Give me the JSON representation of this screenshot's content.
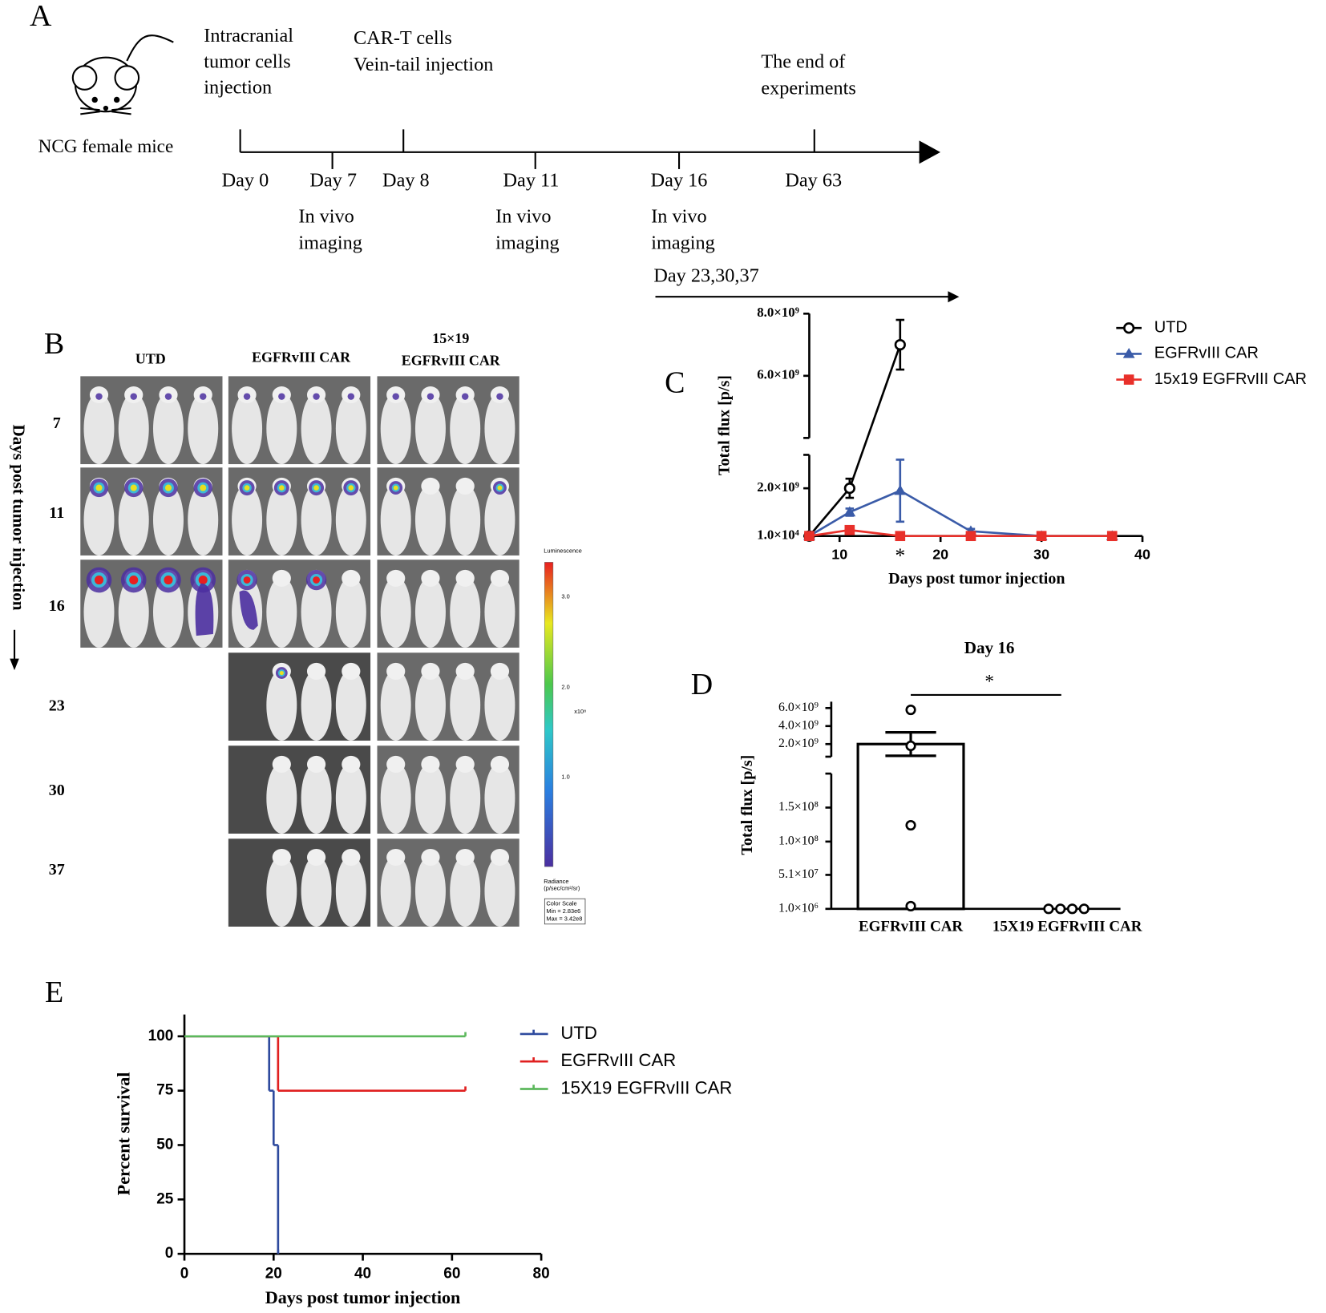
{
  "panel_labels": [
    "A",
    "B",
    "C",
    "D",
    "E"
  ],
  "timeline": {
    "mouse_label": "NCG female mice",
    "top_notes": [
      [
        "Intracranial",
        "tumor cells",
        "injection"
      ],
      [
        "CAR-T cells",
        "Vein-tail injection"
      ],
      [
        "The end of",
        "experiments"
      ]
    ],
    "day_labels": [
      "Day 0",
      "Day 7",
      "Day 8",
      "Day 11",
      "Day 16",
      "Day 63"
    ],
    "bottom_notes": [
      [
        "In vivo",
        "imaging"
      ],
      [
        "In vivo",
        "imaging"
      ],
      [
        "In vivo",
        "imaging"
      ]
    ],
    "followup": "Day 23,30,37"
  },
  "imaging": {
    "column_headers": [
      [
        "UTD"
      ],
      [
        "EGFRvIII CAR"
      ],
      [
        "15×19",
        "EGFRvIII CAR"
      ]
    ],
    "row_labels": [
      "7",
      "11",
      "16",
      "23",
      "30",
      "37"
    ],
    "axis_label": "Days post tumor injection",
    "colorbar": {
      "title": "Luminescence",
      "ticks": [
        "3.0",
        "2.0",
        "1.0"
      ],
      "unit": "x10⁸",
      "radiance": [
        "Radiance",
        "(p/sec/cm²/sr)"
      ],
      "scale_box": [
        "Color Scale",
        "Min = 2.83e6",
        "Max = 3.42e8"
      ]
    }
  },
  "chart_data": [
    {
      "type": "line",
      "x_label": "Days post tumor injection",
      "y_label": "Total flux [p/s]",
      "x": [
        7,
        11,
        16,
        23,
        30,
        37
      ],
      "xlim": [
        7,
        40
      ],
      "xticks": [
        10,
        20,
        30,
        40
      ],
      "ylim": [
        10000,
        8000000000
      ],
      "ybreak": [
        3400000000,
        4000000000
      ],
      "yticks": [
        {
          "value": 10000,
          "label": "1.0×10⁴"
        },
        {
          "value": 2000000000,
          "label": "2.0×10⁹"
        },
        {
          "value": 6000000000,
          "label": "6.0×10⁹"
        },
        {
          "value": 8000000000,
          "label": "8.0×10⁹"
        }
      ],
      "series": [
        {
          "name": "UTD",
          "color": "#000000",
          "marker": "circle",
          "values": [
            10000,
            2000000000,
            7000000000,
            null,
            null,
            null
          ],
          "errors": [
            0,
            400000000,
            800000000,
            null,
            null,
            null
          ]
        },
        {
          "name": "EGFRvIII CAR",
          "color": "#3a5ba8",
          "marker": "triangle",
          "values": [
            10000,
            1000000000,
            1900000000,
            200000000,
            10000,
            10000
          ],
          "errors": [
            0,
            150000000,
            1300000000,
            100000000,
            0,
            0
          ]
        },
        {
          "name": "15x19 EGFRvIII CAR",
          "color": "#e8302a",
          "marker": "square",
          "values": [
            10000,
            250000000,
            10000,
            10000,
            10000,
            10000
          ],
          "errors": [
            0,
            80000000,
            0,
            0,
            0,
            0
          ]
        }
      ],
      "significance": {
        "text": "*",
        "x": 16
      }
    },
    {
      "type": "bar",
      "title": "Day 16",
      "y_label": "Total flux [p/s]",
      "categories": [
        "EGFRvIII CAR",
        "15X19 EGFRvIII CAR"
      ],
      "values": [
        2000000000,
        1000000
      ],
      "errors": [
        1300000000,
        0
      ],
      "points": [
        [
          5800000000,
          1800000000,
          124000000,
          5000000
        ],
        [
          1000000,
          1000000,
          1000000,
          1000000
        ]
      ],
      "ylim": [
        1000000,
        6700000000
      ],
      "ybreak": [
        200000000,
        600000000
      ],
      "yticks": [
        {
          "value": 1000000,
          "label": "1.0×10⁶"
        },
        {
          "value": 51000000,
          "label": "5.1×10⁷"
        },
        {
          "value": 100000000,
          "label": "1.0×10⁸"
        },
        {
          "value": 150000000,
          "label": "1.5×10⁸"
        },
        {
          "value": 2000000000,
          "label": "2.0×10⁹"
        },
        {
          "value": 4000000000,
          "label": "4.0×10⁹"
        },
        {
          "value": 6000000000,
          "label": "6.0×10⁹"
        }
      ],
      "significance": "*"
    },
    {
      "type": "step",
      "x_label": "Days post tumor injection",
      "y_label": "Percent survival",
      "xlim": [
        0,
        80
      ],
      "xticks": [
        0,
        20,
        40,
        60,
        80
      ],
      "ylim": [
        0,
        110
      ],
      "yticks": [
        0,
        25,
        50,
        75,
        100
      ],
      "series": [
        {
          "name": "UTD",
          "color": "#2e4a9e",
          "x": [
            0,
            19,
            20,
            21
          ],
          "values": [
            100,
            75,
            50,
            0
          ]
        },
        {
          "name": "EGFRvIII CAR",
          "color": "#e02020",
          "x": [
            0,
            21,
            63
          ],
          "values": [
            100,
            75,
            75
          ]
        },
        {
          "name": "15X19 EGFRvIII CAR",
          "color": "#5cb85c",
          "x": [
            0,
            63
          ],
          "values": [
            100,
            100
          ]
        }
      ]
    }
  ]
}
